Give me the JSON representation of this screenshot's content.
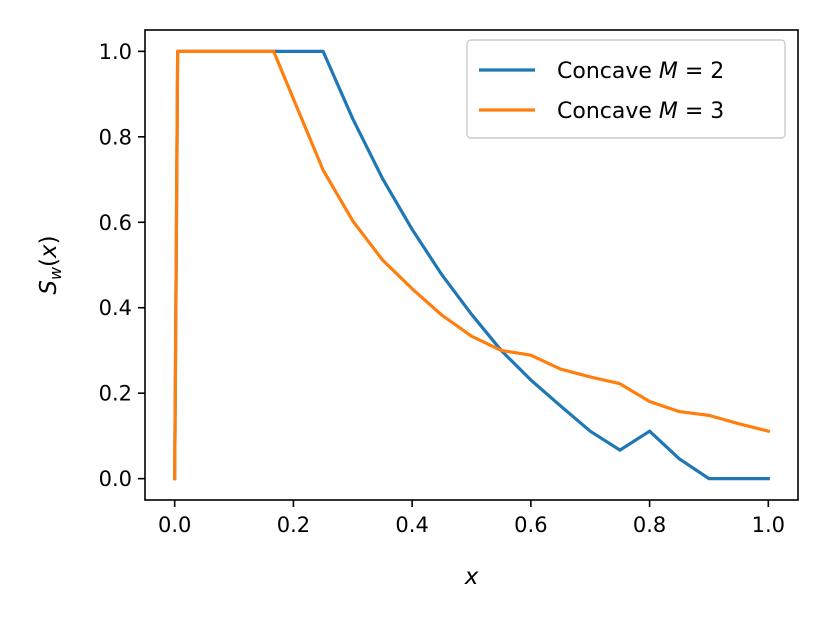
{
  "chart_data": {
    "type": "line",
    "title": "",
    "xlabel": "x",
    "ylabel": "S_w(x)",
    "xlim": [
      -0.05,
      1.05
    ],
    "ylim": [
      -0.05,
      1.05
    ],
    "xticks": [
      0.0,
      0.2,
      0.4,
      0.6,
      0.8,
      1.0
    ],
    "xtick_labels": [
      "0.0",
      "0.2",
      "0.4",
      "0.6",
      "0.8",
      "1.0"
    ],
    "yticks": [
      0.0,
      0.2,
      0.4,
      0.6,
      0.8,
      1.0
    ],
    "ytick_labels": [
      "0.0",
      "0.2",
      "0.4",
      "0.6",
      "0.8",
      "1.0"
    ],
    "grid": false,
    "legend_position": "top-right",
    "series": [
      {
        "name": "Concave M = 2",
        "legend_prefix": "Concave ",
        "legend_var": "M",
        "legend_suffix": " = 2",
        "color": "#1f77b4",
        "x": [
          0.0,
          0.005,
          0.25,
          0.3,
          0.35,
          0.4,
          0.45,
          0.5,
          0.55,
          0.6,
          0.65,
          0.7,
          0.75,
          0.8,
          0.85,
          0.9,
          0.95,
          1.0
        ],
        "y": [
          0.0,
          1.0,
          1.0,
          0.8421,
          0.7027,
          0.5833,
          0.4773,
          0.3846,
          0.3,
          0.2308,
          0.1702,
          0.1111,
          0.0667,
          0.1111,
          0.0465,
          0.0,
          0.0,
          0.0
        ]
      },
      {
        "name": "Concave M = 3",
        "legend_prefix": "Concave ",
        "legend_var": "M",
        "legend_suffix": " = 3",
        "color": "#ff7f0e",
        "x": [
          0.0,
          0.005,
          0.1667,
          0.2,
          0.25,
          0.3,
          0.35,
          0.4,
          0.45,
          0.5,
          0.55,
          0.6,
          0.65,
          0.7,
          0.75,
          0.8,
          0.85,
          0.9,
          0.95,
          1.0
        ],
        "y": [
          0.0,
          1.0,
          1.0,
          0.8889,
          0.7222,
          0.6032,
          0.5119,
          0.4444,
          0.3827,
          0.3333,
          0.3,
          0.2889,
          0.2564,
          0.2381,
          0.2222,
          0.1806,
          0.1569,
          0.1481,
          0.1287,
          0.1111
        ]
      }
    ]
  }
}
